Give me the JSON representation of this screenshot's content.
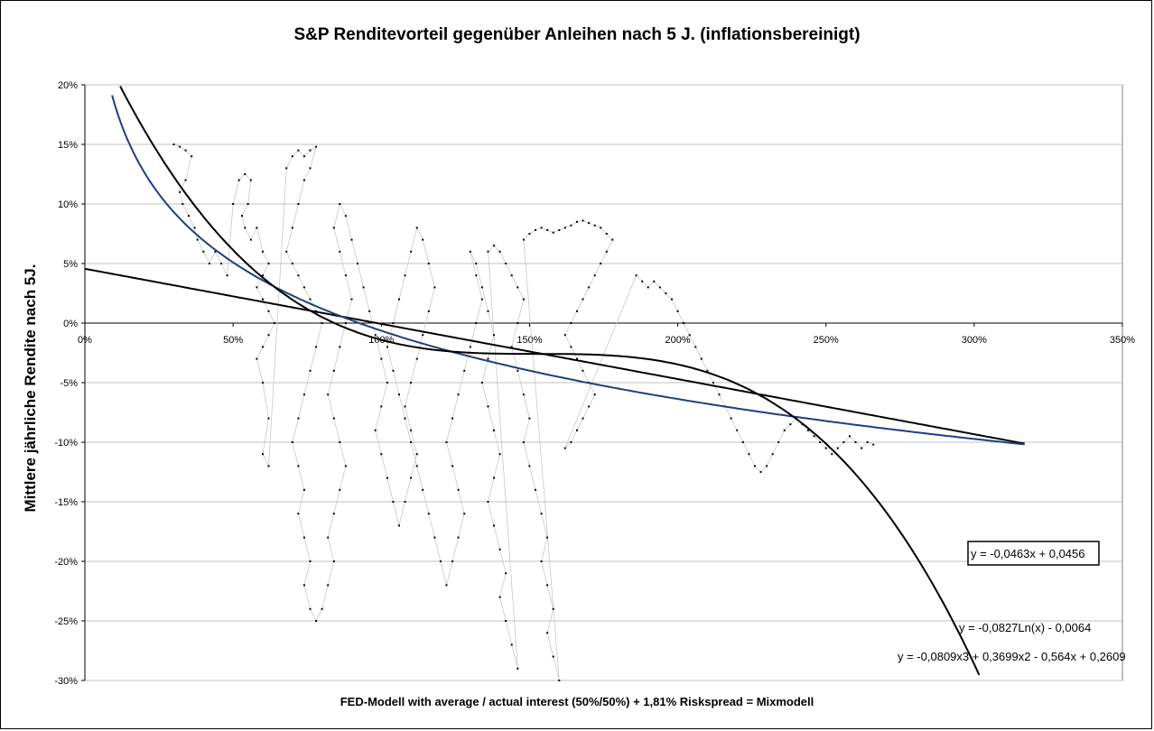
{
  "chart_data": {
    "type": "scatter",
    "title": "S&P Renditevorteil gegenüber Anleihen nach 5 J. (inflationsbereinigt)",
    "xlabel": "FED-Modell with average / actual interest (50%/50%) + 1,81% Riskspread = Mixmodell",
    "ylabel": "Mittlere jährliche Rendite nach 5J.",
    "xlim": [
      0,
      3.5
    ],
    "ylim": [
      -0.3,
      0.2
    ],
    "grid": "horizontal",
    "x_ticks": [
      "0%",
      "50%",
      "100%",
      "150%",
      "200%",
      "250%",
      "300%",
      "350%"
    ],
    "y_ticks": [
      "20%",
      "15%",
      "10%",
      "5%",
      "0%",
      "-5%",
      "-10%",
      "-15%",
      "-20%",
      "-25%",
      "-30%"
    ],
    "trendlines": [
      {
        "kind": "linear",
        "equation": "y = -0,0463x + 0,0456",
        "a": -0.0463,
        "b": 0.0456,
        "x_range": [
          0,
          3.17
        ],
        "color": "#000000"
      },
      {
        "kind": "logarithmic",
        "equation": "y = -0,0827Ln(x) - 0,0064",
        "a": -0.0827,
        "b": -0.0064,
        "x_range": [
          0.05,
          3.17
        ],
        "color": "#1f3f7f"
      },
      {
        "kind": "polynomial",
        "equation": "y = -0,0809x3 + 0,3699x2 - 0,564x + 0,2609",
        "coefficients": [
          -0.0809,
          0.3699,
          -0.564,
          0.2609
        ],
        "x_range": [
          0.05,
          3.5
        ],
        "color": "#000000"
      }
    ],
    "scatter_series": [
      {
        "connected": true,
        "points": [
          [
            0.3,
            0.15
          ],
          [
            0.32,
            0.148
          ],
          [
            0.34,
            0.145
          ],
          [
            0.36,
            0.14
          ],
          [
            0.34,
            0.12
          ],
          [
            0.32,
            0.11
          ],
          [
            0.33,
            0.1
          ],
          [
            0.35,
            0.09
          ],
          [
            0.37,
            0.08
          ],
          [
            0.38,
            0.07
          ],
          [
            0.4,
            0.06
          ],
          [
            0.42,
            0.05
          ],
          [
            0.44,
            0.06
          ],
          [
            0.46,
            0.05
          ],
          [
            0.48,
            0.04
          ],
          [
            0.5,
            0.1
          ],
          [
            0.52,
            0.12
          ],
          [
            0.54,
            0.125
          ],
          [
            0.56,
            0.12
          ],
          [
            0.55,
            0.1
          ],
          [
            0.53,
            0.09
          ],
          [
            0.54,
            0.08
          ],
          [
            0.56,
            0.07
          ],
          [
            0.58,
            0.08
          ],
          [
            0.6,
            0.06
          ],
          [
            0.62,
            0.05
          ],
          [
            0.6,
            0.04
          ],
          [
            0.58,
            0.03
          ],
          [
            0.6,
            0.02
          ],
          [
            0.62,
            0.01
          ],
          [
            0.64,
            0.0
          ],
          [
            0.62,
            -0.01
          ],
          [
            0.6,
            -0.02
          ],
          [
            0.58,
            -0.03
          ],
          [
            0.6,
            -0.05
          ],
          [
            0.62,
            -0.08
          ],
          [
            0.6,
            -0.11
          ],
          [
            0.62,
            -0.12
          ],
          [
            0.68,
            0.13
          ],
          [
            0.7,
            0.14
          ],
          [
            0.72,
            0.145
          ],
          [
            0.74,
            0.14
          ],
          [
            0.76,
            0.145
          ],
          [
            0.78,
            0.148
          ],
          [
            0.76,
            0.13
          ],
          [
            0.74,
            0.12
          ],
          [
            0.72,
            0.1
          ],
          [
            0.7,
            0.08
          ],
          [
            0.68,
            0.06
          ],
          [
            0.7,
            0.05
          ],
          [
            0.72,
            0.04
          ],
          [
            0.74,
            0.03
          ],
          [
            0.76,
            0.02
          ],
          [
            0.78,
            0.01
          ],
          [
            0.8,
            0.0
          ],
          [
            0.78,
            -0.02
          ],
          [
            0.76,
            -0.04
          ],
          [
            0.74,
            -0.06
          ],
          [
            0.72,
            -0.08
          ],
          [
            0.7,
            -0.1
          ],
          [
            0.72,
            -0.12
          ],
          [
            0.74,
            -0.14
          ],
          [
            0.72,
            -0.16
          ],
          [
            0.74,
            -0.18
          ],
          [
            0.76,
            -0.2
          ],
          [
            0.74,
            -0.22
          ],
          [
            0.76,
            -0.24
          ],
          [
            0.78,
            -0.25
          ],
          [
            0.8,
            -0.24
          ],
          [
            0.82,
            -0.22
          ],
          [
            0.84,
            -0.2
          ],
          [
            0.82,
            -0.18
          ],
          [
            0.84,
            -0.16
          ],
          [
            0.86,
            -0.14
          ],
          [
            0.88,
            -0.12
          ],
          [
            0.86,
            -0.1
          ],
          [
            0.84,
            -0.08
          ],
          [
            0.82,
            -0.06
          ],
          [
            0.84,
            -0.04
          ],
          [
            0.86,
            -0.02
          ],
          [
            0.88,
            0.0
          ],
          [
            0.9,
            0.02
          ],
          [
            0.88,
            0.04
          ],
          [
            0.86,
            0.06
          ],
          [
            0.84,
            0.08
          ],
          [
            0.86,
            0.1
          ],
          [
            0.88,
            0.09
          ],
          [
            0.9,
            0.07
          ],
          [
            0.92,
            0.05
          ],
          [
            0.94,
            0.03
          ],
          [
            0.96,
            0.01
          ],
          [
            0.98,
            -0.01
          ],
          [
            1.0,
            -0.03
          ],
          [
            1.02,
            -0.05
          ],
          [
            1.0,
            -0.07
          ],
          [
            0.98,
            -0.09
          ],
          [
            1.0,
            -0.11
          ],
          [
            1.02,
            -0.13
          ],
          [
            1.04,
            -0.15
          ],
          [
            1.06,
            -0.17
          ],
          [
            1.08,
            -0.15
          ],
          [
            1.1,
            -0.13
          ],
          [
            1.12,
            -0.11
          ],
          [
            1.1,
            -0.09
          ],
          [
            1.08,
            -0.07
          ],
          [
            1.1,
            -0.05
          ],
          [
            1.12,
            -0.03
          ],
          [
            1.14,
            -0.01
          ],
          [
            1.16,
            0.01
          ],
          [
            1.18,
            0.03
          ],
          [
            1.16,
            0.05
          ],
          [
            1.14,
            0.07
          ],
          [
            1.12,
            0.08
          ],
          [
            1.1,
            0.06
          ],
          [
            1.08,
            0.04
          ],
          [
            1.06,
            0.02
          ],
          [
            1.04,
            0.0
          ],
          [
            1.02,
            -0.02
          ],
          [
            1.04,
            -0.04
          ],
          [
            1.06,
            -0.06
          ],
          [
            1.08,
            -0.08
          ],
          [
            1.1,
            -0.1
          ],
          [
            1.12,
            -0.12
          ],
          [
            1.14,
            -0.14
          ],
          [
            1.16,
            -0.16
          ],
          [
            1.18,
            -0.18
          ],
          [
            1.2,
            -0.2
          ],
          [
            1.22,
            -0.22
          ],
          [
            1.24,
            -0.2
          ],
          [
            1.26,
            -0.18
          ],
          [
            1.28,
            -0.16
          ],
          [
            1.26,
            -0.14
          ],
          [
            1.24,
            -0.12
          ],
          [
            1.22,
            -0.1
          ],
          [
            1.24,
            -0.08
          ],
          [
            1.26,
            -0.06
          ],
          [
            1.28,
            -0.04
          ],
          [
            1.3,
            -0.02
          ],
          [
            1.32,
            0.0
          ],
          [
            1.34,
            0.02
          ],
          [
            1.32,
            0.04
          ],
          [
            1.3,
            0.06
          ],
          [
            1.32,
            0.05
          ],
          [
            1.34,
            0.03
          ],
          [
            1.36,
            0.01
          ],
          [
            1.38,
            -0.01
          ],
          [
            1.36,
            -0.03
          ],
          [
            1.34,
            -0.05
          ],
          [
            1.36,
            -0.07
          ],
          [
            1.38,
            -0.09
          ],
          [
            1.4,
            -0.11
          ],
          [
            1.38,
            -0.13
          ],
          [
            1.36,
            -0.15
          ],
          [
            1.38,
            -0.17
          ],
          [
            1.4,
            -0.19
          ],
          [
            1.42,
            -0.21
          ],
          [
            1.4,
            -0.23
          ],
          [
            1.42,
            -0.25
          ],
          [
            1.44,
            -0.27
          ],
          [
            1.46,
            -0.29
          ],
          [
            1.36,
            0.06
          ],
          [
            1.38,
            0.065
          ],
          [
            1.4,
            0.06
          ],
          [
            1.42,
            0.05
          ],
          [
            1.44,
            0.04
          ],
          [
            1.46,
            0.03
          ],
          [
            1.48,
            0.02
          ],
          [
            1.46,
            0.0
          ],
          [
            1.44,
            -0.02
          ],
          [
            1.46,
            -0.04
          ],
          [
            1.48,
            -0.06
          ],
          [
            1.5,
            -0.08
          ],
          [
            1.48,
            -0.1
          ],
          [
            1.5,
            -0.12
          ],
          [
            1.52,
            -0.14
          ],
          [
            1.54,
            -0.16
          ],
          [
            1.56,
            -0.18
          ],
          [
            1.54,
            -0.2
          ],
          [
            1.56,
            -0.22
          ],
          [
            1.58,
            -0.24
          ],
          [
            1.56,
            -0.26
          ],
          [
            1.58,
            -0.28
          ],
          [
            1.6,
            -0.3
          ],
          [
            1.48,
            0.07
          ],
          [
            1.5,
            0.075
          ],
          [
            1.52,
            0.078
          ],
          [
            1.54,
            0.08
          ],
          [
            1.56,
            0.078
          ],
          [
            1.58,
            0.076
          ],
          [
            1.6,
            0.078
          ],
          [
            1.62,
            0.08
          ],
          [
            1.64,
            0.082
          ],
          [
            1.66,
            0.085
          ],
          [
            1.68,
            0.086
          ],
          [
            1.7,
            0.084
          ],
          [
            1.72,
            0.082
          ],
          [
            1.74,
            0.08
          ],
          [
            1.76,
            0.075
          ],
          [
            1.78,
            0.07
          ],
          [
            1.76,
            0.06
          ],
          [
            1.74,
            0.05
          ],
          [
            1.72,
            0.04
          ],
          [
            1.7,
            0.03
          ],
          [
            1.68,
            0.02
          ],
          [
            1.66,
            0.01
          ],
          [
            1.64,
            0.0
          ],
          [
            1.62,
            -0.01
          ],
          [
            1.64,
            -0.02
          ],
          [
            1.66,
            -0.03
          ],
          [
            1.68,
            -0.04
          ],
          [
            1.7,
            -0.05
          ],
          [
            1.72,
            -0.06
          ],
          [
            1.7,
            -0.07
          ],
          [
            1.68,
            -0.08
          ],
          [
            1.66,
            -0.09
          ],
          [
            1.64,
            -0.1
          ],
          [
            1.62,
            -0.105
          ],
          [
            1.86,
            0.04
          ],
          [
            1.88,
            0.035
          ],
          [
            1.9,
            0.03
          ],
          [
            1.92,
            0.035
          ],
          [
            1.94,
            0.03
          ],
          [
            1.96,
            0.025
          ],
          [
            1.98,
            0.02
          ],
          [
            2.0,
            0.01
          ],
          [
            2.02,
            0.0
          ],
          [
            2.04,
            -0.01
          ],
          [
            2.06,
            -0.02
          ],
          [
            2.08,
            -0.03
          ],
          [
            2.1,
            -0.04
          ],
          [
            2.12,
            -0.05
          ],
          [
            2.14,
            -0.06
          ],
          [
            2.16,
            -0.07
          ],
          [
            2.18,
            -0.08
          ],
          [
            2.2,
            -0.09
          ],
          [
            2.22,
            -0.1
          ],
          [
            2.24,
            -0.11
          ],
          [
            2.26,
            -0.12
          ],
          [
            2.28,
            -0.125
          ],
          [
            2.3,
            -0.12
          ],
          [
            2.32,
            -0.11
          ],
          [
            2.34,
            -0.1
          ],
          [
            2.36,
            -0.09
          ],
          [
            2.38,
            -0.085
          ],
          [
            2.4,
            -0.08
          ],
          [
            2.42,
            -0.085
          ],
          [
            2.44,
            -0.09
          ],
          [
            2.46,
            -0.095
          ],
          [
            2.48,
            -0.1
          ],
          [
            2.5,
            -0.105
          ],
          [
            2.52,
            -0.11
          ],
          [
            2.54,
            -0.105
          ],
          [
            2.56,
            -0.1
          ],
          [
            2.58,
            -0.095
          ],
          [
            2.6,
            -0.1
          ],
          [
            2.62,
            -0.105
          ],
          [
            2.64,
            -0.1
          ],
          [
            2.66,
            -0.102
          ]
        ]
      }
    ],
    "annotations": [
      {
        "text": "y = -0,0463x + 0,0456",
        "boxed": true
      },
      {
        "text": "y = -0,0827Ln(x) - 0,0064",
        "boxed": false
      },
      {
        "text": "y = -0,0809x3 + 0,3699x2 - 0,564x + 0,2609",
        "boxed": false
      }
    ]
  }
}
